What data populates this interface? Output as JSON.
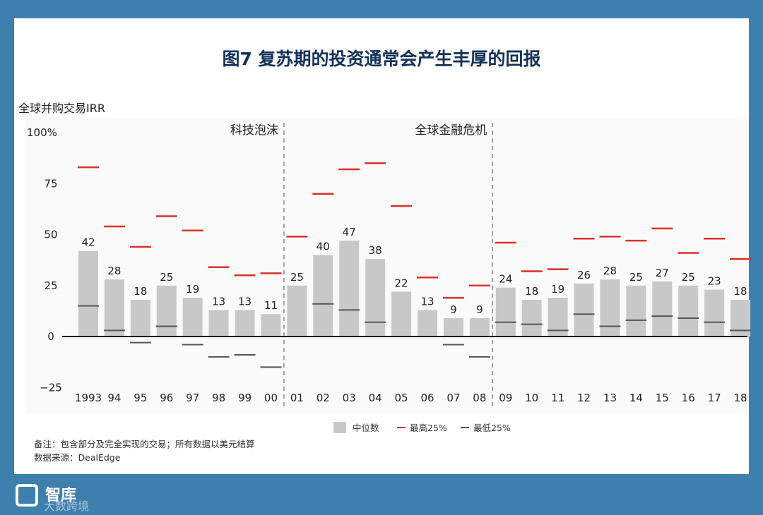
{
  "title": "图7 复苏期的投资通常会产生丰厚的回报",
  "notes": {
    "line1": "备注：包含部分及完全实现的交易；所有数据以美元结算",
    "line2": "数据来源：DealEdge"
  },
  "brand": {
    "name": "智库",
    "sub": "大数跨境"
  },
  "colors": {
    "median": "#c8c8c8",
    "top": "#d9312b",
    "bottom": "#555555"
  },
  "chart_data": {
    "type": "bar",
    "ylabel": "全球并购交易IRR",
    "ylim": [
      -25,
      100
    ],
    "yticks": [
      {
        "value": 100,
        "label": "100%"
      },
      {
        "value": 75,
        "label": "75"
      },
      {
        "value": 50,
        "label": "50"
      },
      {
        "value": 25,
        "label": "25"
      },
      {
        "value": 0,
        "label": "0"
      },
      {
        "value": -25,
        "label": "−25"
      }
    ],
    "categories": [
      "1993",
      "94",
      "95",
      "96",
      "97",
      "98",
      "99",
      "00",
      "01",
      "02",
      "03",
      "04",
      "05",
      "06",
      "07",
      "08",
      "09",
      "10",
      "11",
      "12",
      "13",
      "14",
      "15",
      "16",
      "17",
      "18"
    ],
    "series": [
      {
        "name": "中位数",
        "values": [
          42,
          28,
          18,
          25,
          19,
          13,
          13,
          11,
          25,
          40,
          47,
          38,
          22,
          13,
          9,
          9,
          24,
          18,
          19,
          26,
          28,
          25,
          27,
          25,
          23,
          18
        ]
      },
      {
        "name": "最高25%",
        "values": [
          83,
          54,
          44,
          59,
          52,
          34,
          30,
          31,
          49,
          70,
          82,
          85,
          64,
          29,
          19,
          25,
          46,
          32,
          33,
          48,
          49,
          47,
          53,
          41,
          48,
          38
        ]
      },
      {
        "name": "最低25%",
        "values": [
          15,
          3,
          -3,
          5,
          -4,
          -10,
          -9,
          -15,
          null,
          16,
          13,
          7,
          0,
          null,
          -4,
          -10,
          7,
          6,
          3,
          11,
          5,
          8,
          10,
          9,
          7,
          3
        ]
      }
    ],
    "annotations": [
      {
        "label": "科技泡沫",
        "after_category": "00"
      },
      {
        "label": "全球金融危机",
        "after_category": "08"
      }
    ],
    "legend": "bottom"
  }
}
